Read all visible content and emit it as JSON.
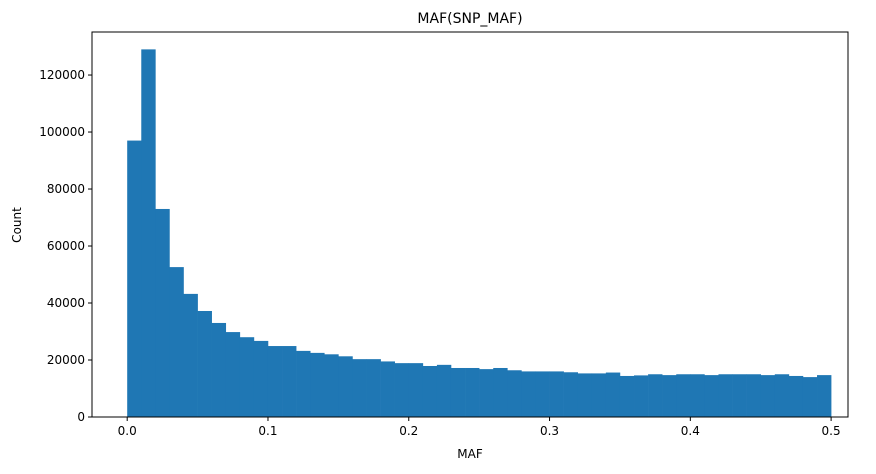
{
  "chart_data": {
    "type": "bar",
    "subtype": "histogram",
    "title": "MAF(SNP_MAF)",
    "xlabel": "MAF",
    "ylabel": "Count",
    "xlim": [
      -0.025,
      0.512
    ],
    "ylim": [
      0,
      135100
    ],
    "grid": false,
    "color": "#1f77b4",
    "bin_width": 0.01,
    "bin_start": 0.0,
    "x_ticks": [
      "0.0",
      "0.1",
      "0.2",
      "0.3",
      "0.4",
      "0.5"
    ],
    "x_tick_values": [
      0,
      0.1,
      0.2,
      0.3,
      0.4,
      0.5
    ],
    "y_ticks": [
      "0",
      "20000",
      "40000",
      "60000",
      "80000",
      "100000",
      "120000"
    ],
    "y_tick_values": [
      0,
      20000,
      40000,
      60000,
      80000,
      100000,
      120000
    ],
    "values": [
      97000,
      129000,
      73000,
      52600,
      43200,
      37200,
      33000,
      29800,
      28000,
      26700,
      24900,
      24900,
      23200,
      22500,
      22000,
      21300,
      20300,
      20300,
      19500,
      18900,
      18900,
      17900,
      18300,
      17200,
      17200,
      16800,
      17200,
      16400,
      16000,
      16000,
      16000,
      15700,
      15300,
      15300,
      15600,
      14400,
      14600,
      15000,
      14700,
      15000,
      15000,
      14700,
      15000,
      15000,
      15000,
      14700,
      15000,
      14400,
      14000,
      14700
    ]
  }
}
